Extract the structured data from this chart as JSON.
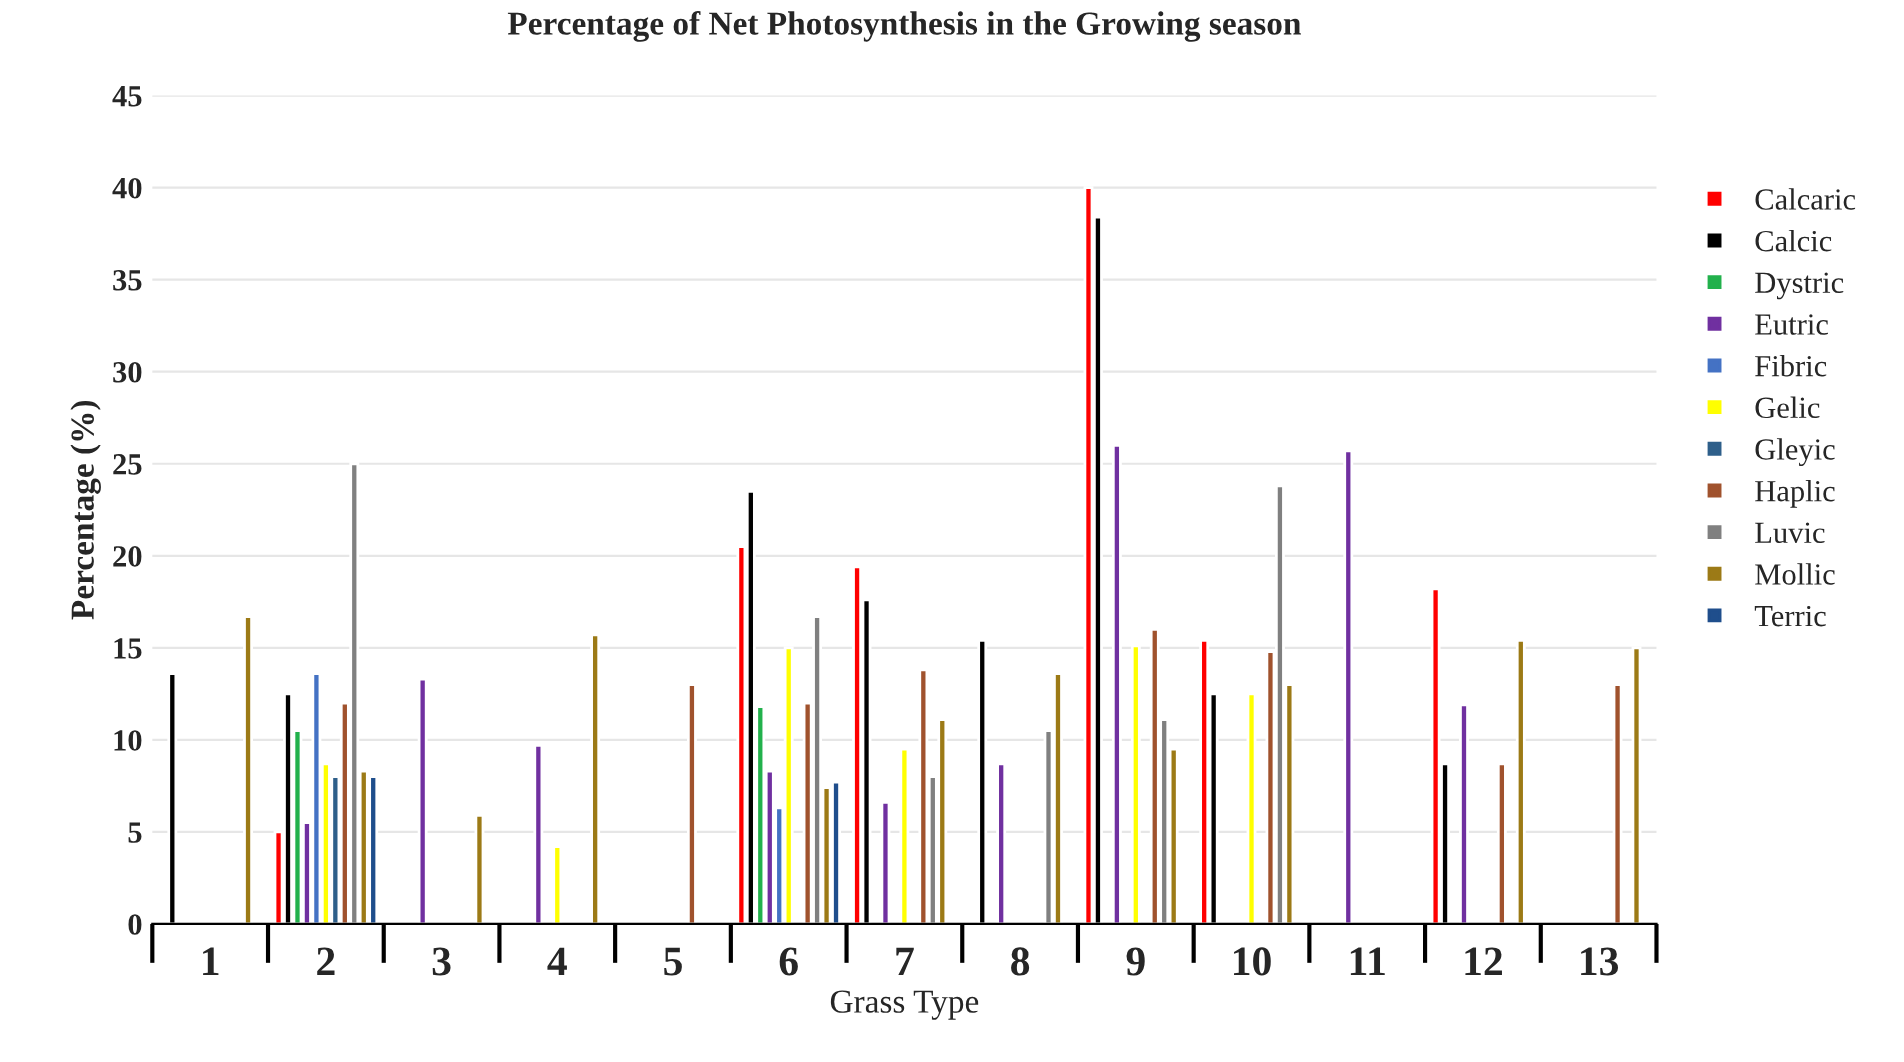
{
  "chart_data": {
    "type": "bar",
    "title": "Percentage of Net Photosynthesis in the Growing season",
    "xlabel": "Grass Type",
    "ylabel": "Percentage (%)",
    "categories": [
      "1",
      "2",
      "3",
      "4",
      "5",
      "6",
      "7",
      "8",
      "9",
      "10",
      "11",
      "12",
      "13"
    ],
    "ylim": [
      0,
      45
    ],
    "yticks": [
      0,
      5,
      10,
      15,
      20,
      25,
      30,
      35,
      40,
      45
    ],
    "grid": "y",
    "legend": "right",
    "series": [
      {
        "name": "Calcaric",
        "color": "#ff0000",
        "values": [
          null,
          5,
          null,
          null,
          null,
          20.5,
          19.4,
          null,
          40,
          15.4,
          null,
          18.2,
          null
        ]
      },
      {
        "name": "Calcic",
        "color": "#000000",
        "values": [
          13.6,
          12.5,
          null,
          null,
          null,
          23.5,
          17.6,
          15.4,
          38.4,
          12.5,
          null,
          8.7,
          null
        ]
      },
      {
        "name": "Dystric",
        "color": "#22b14c",
        "values": [
          null,
          10.5,
          null,
          null,
          null,
          11.8,
          null,
          null,
          null,
          null,
          null,
          null,
          null
        ]
      },
      {
        "name": "Eutric",
        "color": "#7030a0",
        "values": [
          null,
          5.5,
          13.3,
          9.7,
          null,
          8.3,
          6.6,
          8.7,
          26,
          null,
          25.7,
          11.9,
          null
        ]
      },
      {
        "name": "Fibric",
        "color": "#4472c4",
        "values": [
          null,
          13.6,
          null,
          null,
          null,
          6.3,
          null,
          null,
          null,
          null,
          null,
          null,
          null
        ]
      },
      {
        "name": "Gelic",
        "color": "#ffff00",
        "values": [
          null,
          8.7,
          null,
          4.2,
          null,
          15,
          9.5,
          null,
          15.1,
          12.5,
          null,
          null,
          null
        ]
      },
      {
        "name": "Gleyic",
        "color": "#2e5f8a",
        "values": [
          null,
          8,
          null,
          null,
          null,
          null,
          null,
          null,
          null,
          null,
          null,
          null,
          null
        ]
      },
      {
        "name": "Haplic",
        "color": "#a0522d",
        "values": [
          null,
          12,
          null,
          null,
          13,
          12,
          13.8,
          null,
          16,
          14.8,
          null,
          8.7,
          13
        ]
      },
      {
        "name": "Luvic",
        "color": "#808080",
        "values": [
          null,
          25,
          null,
          null,
          null,
          16.7,
          8,
          10.5,
          11.1,
          23.8,
          null,
          null,
          null
        ]
      },
      {
        "name": "Mollic",
        "color": "#9c7a16",
        "values": [
          16.7,
          8.3,
          5.9,
          15.7,
          null,
          7.4,
          11.1,
          13.6,
          9.5,
          13,
          null,
          15.4,
          15
        ]
      },
      {
        "name": "Terric",
        "color": "#1f4e8c",
        "values": [
          null,
          8,
          null,
          null,
          null,
          7.7,
          null,
          null,
          null,
          null,
          null,
          null,
          null
        ]
      }
    ]
  }
}
